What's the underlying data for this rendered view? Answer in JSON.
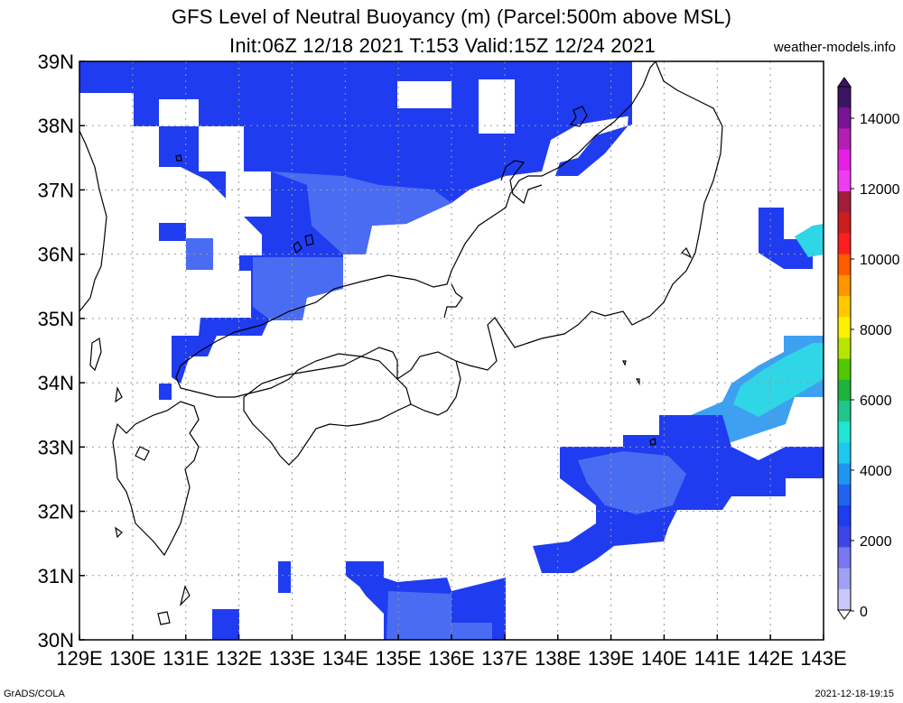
{
  "header": {
    "title_line1": "GFS Level of Neutral Buoyancy (m) (Parcel:500m above MSL)",
    "title_line2": "Init:06Z 12/18 2021 T:153 Valid:15Z 12/24 2021",
    "site": "weather-models.info"
  },
  "map": {
    "x_labels": [
      "129E",
      "130E",
      "131E",
      "132E",
      "133E",
      "134E",
      "135E",
      "136E",
      "137E",
      "138E",
      "139E",
      "140E",
      "141E",
      "142E",
      "143E"
    ],
    "y_labels": [
      "39N",
      "38N",
      "37N",
      "36N",
      "35N",
      "34N",
      "33N",
      "32N",
      "31N",
      "30N"
    ],
    "colors": {
      "blue_mid": "#1f3cf0",
      "blue_light": "#4a6cf2",
      "blue_pale": "#5b7de8",
      "sky": "#3ea0f0",
      "cyan": "#2fd6e6"
    }
  },
  "colorbar": {
    "labels": [
      "14000",
      "12000",
      "10000",
      "8000",
      "6000",
      "4000",
      "2000",
      "0"
    ],
    "colors": [
      "#3c1464",
      "#7a1496",
      "#b41eb4",
      "#e61ee6",
      "#f03cf0",
      "#a01e3c",
      "#c81e1e",
      "#ff1e1e",
      "#ff5a00",
      "#ff9600",
      "#ffc800",
      "#fff000",
      "#b4e600",
      "#50c800",
      "#1eb43c",
      "#1ec88c",
      "#1ee6d2",
      "#1ec8f0",
      "#1e96f0",
      "#1e64f0",
      "#1e3cf0",
      "#3c46e6",
      "#7878f0",
      "#a0a0f5",
      "#c8c8fa"
    ]
  },
  "footer": {
    "left": "GrADS/COLA",
    "right": "2021-12-18-19:15"
  }
}
